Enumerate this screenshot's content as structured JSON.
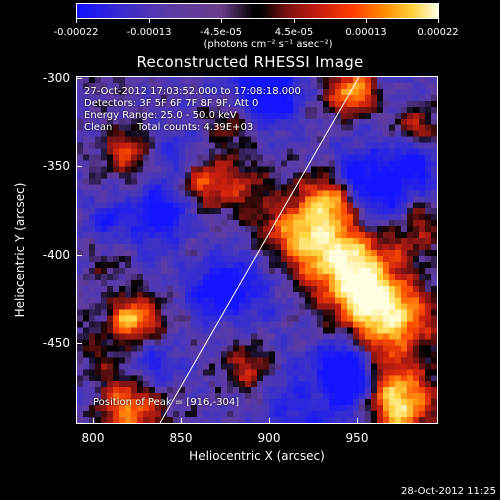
{
  "colorbar": {
    "ticks": [
      "-0.00022",
      "-0.00013",
      "-4.5e-05",
      "4.5e-05",
      "0.00013",
      "0.00022"
    ],
    "units": "(photons cm⁻² s⁻¹ asec⁻²)"
  },
  "title": "Reconstructed RHESSI Image",
  "info": {
    "time_range": "27-Oct-2012 17:03:52.000 to 17:08:18.000",
    "detectors": "Detectors: 3F 5F 6F 7F 8F 9F, Att 0",
    "energy_range": "Energy Range: 25.0 - 50.0 keV",
    "algorithm": "Clean",
    "total_counts": "Total counts: 4.39E+03",
    "peak": "Position of Peak = [916,-304]"
  },
  "axes": {
    "xlabel": "Heliocentric X (arcsec)",
    "ylabel": "Heliocentric Y (arcsec)",
    "x_ticks": [
      "800",
      "850",
      "900",
      "950"
    ],
    "y_ticks": [
      "-300",
      "-350",
      "-400",
      "-450"
    ]
  },
  "timestamp": "28-Oct-2012 11:25"
}
